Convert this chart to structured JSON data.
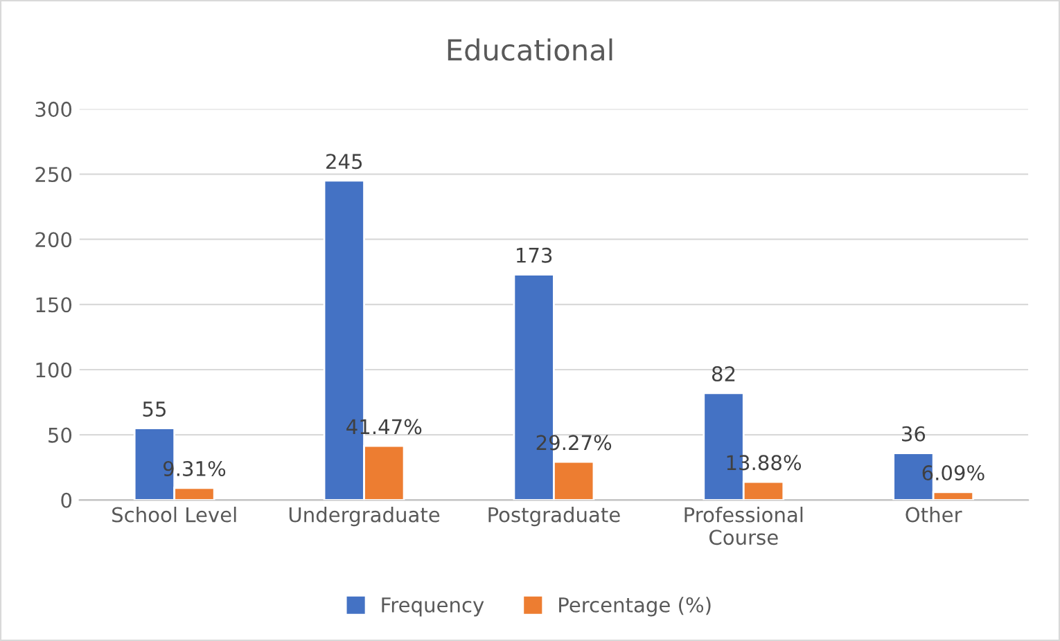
{
  "chart_data": {
    "type": "bar",
    "title": "Educational",
    "categories": [
      "School Level",
      "Undergraduate",
      "Postgraduate",
      "Professional Course",
      "Other"
    ],
    "series": [
      {
        "name": "Frequency",
        "color": "#4472c4",
        "values": [
          55,
          245,
          173,
          82,
          36
        ],
        "value_labels": [
          "55",
          "245",
          "173",
          "82",
          "36"
        ]
      },
      {
        "name": "Percentage (%)",
        "color": "#ed7d31",
        "values": [
          9.31,
          41.47,
          29.27,
          13.88,
          6.09
        ],
        "value_labels": [
          "9.31%",
          "41.47%",
          "29.27%",
          "13.88%",
          "6.09%"
        ]
      }
    ],
    "ylim": [
      0,
      300
    ],
    "yticks": [
      0,
      50,
      100,
      150,
      200,
      250,
      300
    ],
    "grid": "y",
    "legend": "bottom"
  }
}
